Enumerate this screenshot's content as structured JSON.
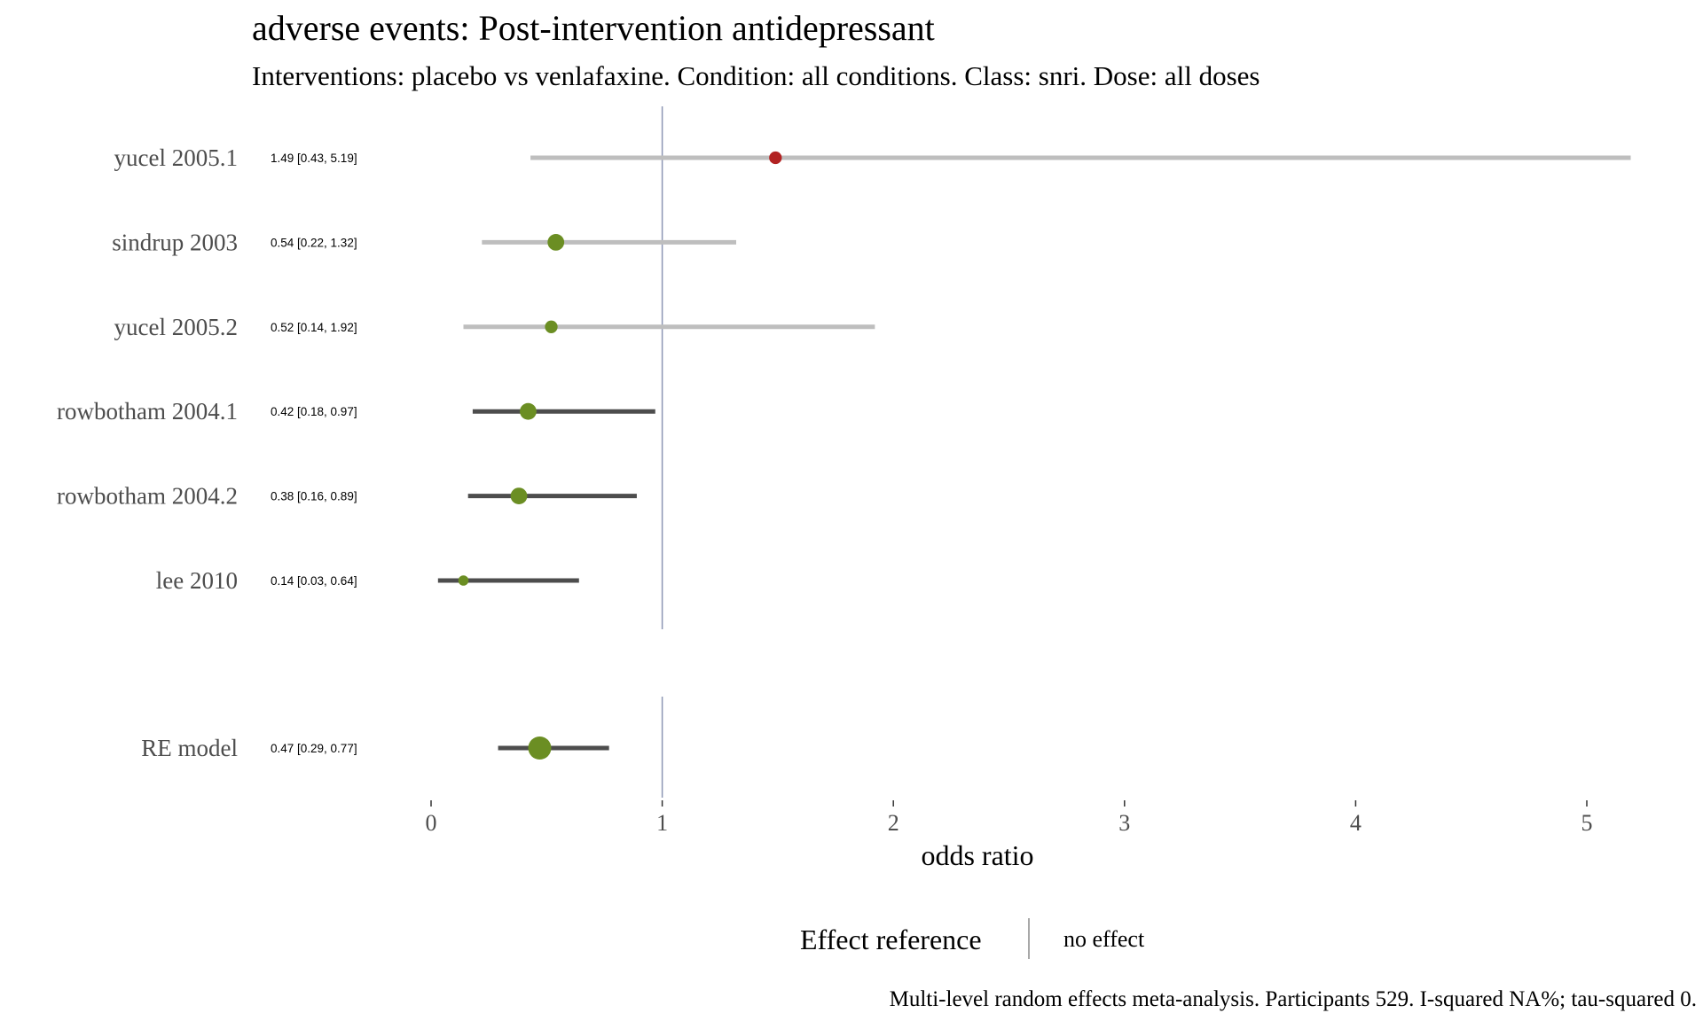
{
  "chart_data": {
    "type": "forest",
    "title": "adverse events: Post-intervention antidepressant",
    "subtitle": "Interventions: placebo vs venlafaxine. Condition: all conditions. Class: snri. Dose: all doses",
    "xlabel": "odds ratio",
    "x_ticks": [
      "0",
      "1",
      "2",
      "3",
      "4",
      "5"
    ],
    "xlim": [
      -0.5,
      5.25
    ],
    "reference_value": 1,
    "studies": [
      {
        "label": "yucel 2005.1",
        "estimate": 1.49,
        "lower": 0.43,
        "upper": 5.19,
        "ci_text": "1.49 [0.43, 5.19]",
        "ci_color": "#bebebe",
        "point_color": "#b22222",
        "weight": 0.35
      },
      {
        "label": "sindrup 2003",
        "estimate": 0.54,
        "lower": 0.22,
        "upper": 1.32,
        "ci_text": "0.54 [0.22, 1.32]",
        "ci_color": "#bebebe",
        "point_color": "#6b8e23",
        "weight": 0.6
      },
      {
        "label": "yucel 2005.2",
        "estimate": 0.52,
        "lower": 0.14,
        "upper": 1.92,
        "ci_text": "0.52 [0.14, 1.92]",
        "ci_color": "#bebebe",
        "point_color": "#6b8e23",
        "weight": 0.35
      },
      {
        "label": "rowbotham 2004.1",
        "estimate": 0.42,
        "lower": 0.18,
        "upper": 0.97,
        "ci_text": "0.42 [0.18, 0.97]",
        "ci_color": "#4d4d4d",
        "point_color": "#6b8e23",
        "weight": 0.6
      },
      {
        "label": "rowbotham 2004.2",
        "estimate": 0.38,
        "lower": 0.16,
        "upper": 0.89,
        "ci_text": "0.38 [0.16, 0.89]",
        "ci_color": "#4d4d4d",
        "point_color": "#6b8e23",
        "weight": 0.6
      },
      {
        "label": "lee 2010",
        "estimate": 0.14,
        "lower": 0.03,
        "upper": 0.64,
        "ci_text": "0.14 [0.03, 0.64]",
        "ci_color": "#4d4d4d",
        "point_color": "#6b8e23",
        "weight": 0.2
      }
    ],
    "summary": {
      "label": "RE model",
      "estimate": 0.47,
      "lower": 0.29,
      "upper": 0.77,
      "ci_text": "0.47 [0.29, 0.77]",
      "ci_color": "#4d4d4d",
      "point_color": "#6b8e23",
      "weight": 1.0
    },
    "legend": {
      "title": "Effect reference",
      "label": "no effect",
      "position": "bottom"
    },
    "caption": "Multi-level random effects meta-analysis. Participants 529. I-squared NA%; tau-squared 0.",
    "grid": false,
    "colors": {
      "reference_line": "#8c96b4",
      "legend_line": "#a8a8a8"
    }
  }
}
